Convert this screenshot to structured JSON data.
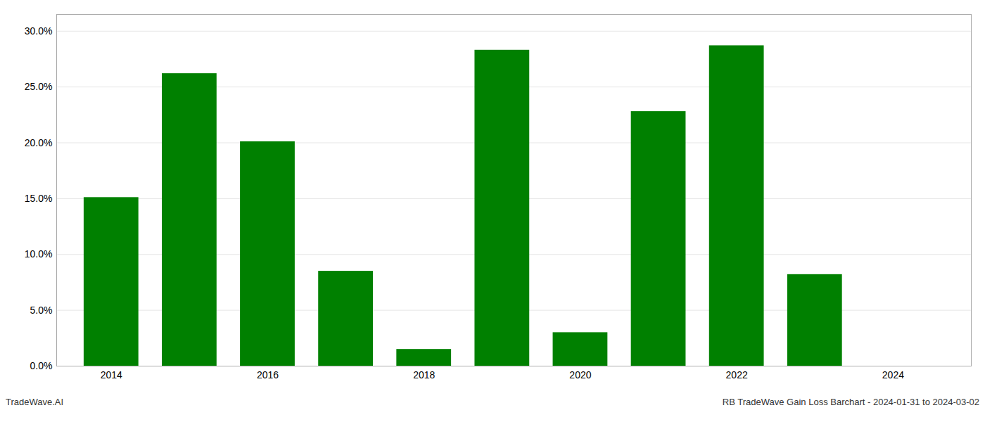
{
  "chart_data": {
    "type": "bar",
    "title": "RB TradeWave Gain Loss Barchart - 2024-01-31 to 2024-03-02",
    "annotations": [
      "TradeWave.AI"
    ],
    "x": [
      2014,
      2015,
      2016,
      2017,
      2018,
      2019,
      2020,
      2021,
      2022,
      2023,
      2024
    ],
    "values": [
      0.151,
      0.262,
      0.201,
      0.085,
      0.015,
      0.283,
      0.03,
      0.228,
      0.287,
      0.082,
      0.0
    ],
    "color": "#008000",
    "xlim": [
      2013.3,
      2025.0
    ],
    "xticks": [
      2014,
      2016,
      2018,
      2020,
      2022,
      2024
    ],
    "ylim": [
      0,
      0.315
    ],
    "yticks": [
      {
        "value": 0.0,
        "label": "0.0%"
      },
      {
        "value": 0.05,
        "label": "5.0%"
      },
      {
        "value": 0.1,
        "label": "10.0%"
      },
      {
        "value": 0.15,
        "label": "15.0%"
      },
      {
        "value": 0.2,
        "label": "20.0%"
      },
      {
        "value": 0.25,
        "label": "25.0%"
      },
      {
        "value": 0.3,
        "label": "30.0%"
      }
    ],
    "grid": true
  }
}
